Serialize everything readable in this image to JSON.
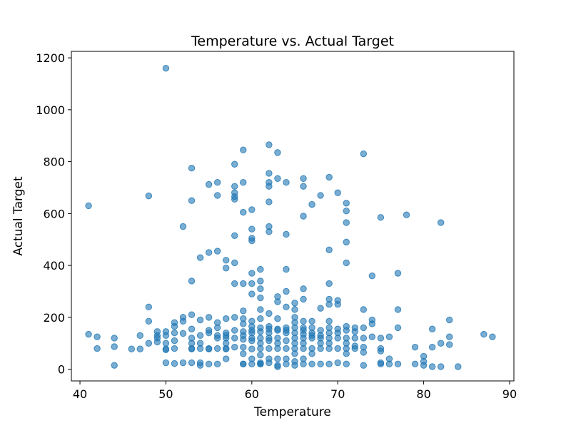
{
  "chart_data": {
    "type": "scatter",
    "title": "Temperature vs. Actual Target",
    "xlabel": "Temperature",
    "ylabel": "Actual Target",
    "xlim": [
      39,
      90.5
    ],
    "ylim": [
      -45,
      1225
    ],
    "xticks": [
      40,
      50,
      60,
      70,
      80,
      90
    ],
    "yticks": [
      0,
      200,
      400,
      600,
      800,
      1000,
      1200
    ],
    "grid": false,
    "legend": "none",
    "color": "#1f77b4",
    "series": [
      {
        "x": [
          41,
          41,
          42,
          42,
          44,
          44,
          44,
          46,
          47,
          47,
          48,
          48,
          48,
          48,
          49,
          49,
          49,
          49,
          50,
          50,
          50,
          50,
          50,
          50,
          50,
          51,
          51,
          51,
          51,
          51,
          51,
          52,
          52,
          52,
          52,
          52,
          53,
          53,
          53,
          53,
          53,
          53,
          53,
          53,
          53,
          53,
          54,
          54,
          54,
          54,
          54,
          54,
          54,
          55,
          55,
          55,
          55,
          55,
          55,
          55,
          55,
          56,
          56,
          56,
          56,
          56,
          56,
          56,
          56,
          56,
          57,
          57,
          57,
          57,
          57,
          57,
          57,
          57,
          57,
          57,
          58,
          58,
          58,
          58,
          58,
          58,
          58,
          58,
          58,
          58,
          58,
          58,
          59,
          59,
          59,
          59,
          59,
          59,
          59,
          59,
          59,
          59,
          59,
          59,
          59,
          59,
          60,
          60,
          60,
          60,
          60,
          60,
          60,
          60,
          60,
          60,
          60,
          60,
          60,
          60,
          60,
          60,
          61,
          61,
          61,
          61,
          61,
          61,
          61,
          61,
          61,
          61,
          61,
          61,
          61,
          61,
          61,
          62,
          62,
          62,
          62,
          62,
          62,
          62,
          62,
          62,
          62,
          62,
          62,
          62,
          62,
          62,
          62,
          63,
          63,
          63,
          63,
          63,
          63,
          63,
          63,
          63,
          63,
          63,
          63,
          63,
          64,
          64,
          64,
          64,
          64,
          64,
          64,
          64,
          64,
          64,
          64,
          64,
          65,
          65,
          65,
          65,
          65,
          65,
          65,
          65,
          65,
          65,
          65,
          65,
          66,
          66,
          66,
          66,
          66,
          66,
          66,
          66,
          66,
          66,
          66,
          66,
          66,
          66,
          67,
          67,
          67,
          67,
          67,
          67,
          67,
          67,
          67,
          68,
          68,
          68,
          68,
          68,
          68,
          68,
          68,
          69,
          69,
          69,
          69,
          69,
          69,
          69,
          69,
          69,
          69,
          69,
          69,
          70,
          70,
          70,
          70,
          70,
          70,
          70,
          70,
          71,
          71,
          71,
          71,
          71,
          71,
          71,
          71,
          71,
          71,
          71,
          71,
          72,
          72,
          72,
          72,
          72,
          73,
          73,
          73,
          73,
          73,
          73,
          73,
          74,
          74,
          74,
          74,
          75,
          75,
          75,
          75,
          75,
          75,
          76,
          76,
          76,
          77,
          77,
          77,
          77,
          78,
          79,
          79,
          80,
          80,
          80,
          81,
          81,
          81,
          82,
          82,
          82,
          83,
          83,
          83,
          84,
          87,
          88
        ],
        "y": [
          630,
          135,
          125,
          80,
          120,
          87,
          15,
          78,
          130,
          78,
          668,
          240,
          185,
          100,
          145,
          130,
          120,
          105,
          1160,
          145,
          130,
          100,
          78,
          75,
          25,
          180,
          165,
          140,
          110,
          80,
          22,
          550,
          200,
          185,
          138,
          25,
          775,
          650,
          340,
          210,
          155,
          120,
          100,
          80,
          78,
          25,
          430,
          190,
          130,
          100,
          80,
          25,
          15,
          712,
          450,
          200,
          150,
          140,
          80,
          78,
          20,
          720,
          670,
          455,
          180,
          160,
          130,
          120,
          80,
          20,
          420,
          390,
          195,
          140,
          130,
          120,
          100,
          80,
          78,
          40,
          790,
          705,
          680,
          665,
          655,
          515,
          410,
          330,
          200,
          150,
          120,
          85,
          845,
          720,
          605,
          330,
          225,
          195,
          175,
          145,
          130,
          115,
          85,
          60,
          20,
          20,
          615,
          540,
          505,
          495,
          370,
          330,
          290,
          185,
          165,
          150,
          140,
          120,
          110,
          78,
          40,
          20,
          385,
          340,
          310,
          275,
          230,
          195,
          160,
          145,
          120,
          100,
          80,
          55,
          25,
          20,
          20,
          865,
          755,
          720,
          705,
          645,
          550,
          530,
          215,
          165,
          155,
          140,
          120,
          110,
          80,
          40,
          25,
          835,
          735,
          280,
          260,
          195,
          155,
          150,
          120,
          100,
          80,
          40,
          15,
          10,
          720,
          520,
          385,
          300,
          240,
          160,
          150,
          140,
          110,
          80,
          40,
          20,
          30,
          255,
          230,
          200,
          180,
          160,
          140,
          120,
          100,
          80,
          60,
          15,
          735,
          705,
          590,
          310,
          270,
          185,
          160,
          150,
          135,
          120,
          100,
          80,
          40,
          20,
          635,
          185,
          160,
          140,
          130,
          120,
          80,
          60,
          20,
          670,
          235,
          150,
          130,
          120,
          100,
          80,
          20,
          740,
          460,
          330,
          270,
          250,
          185,
          160,
          140,
          120,
          100,
          80,
          20,
          680,
          265,
          250,
          155,
          140,
          120,
          80,
          25,
          640,
          610,
          565,
          490,
          410,
          165,
          150,
          120,
          100,
          80,
          60,
          20,
          160,
          145,
          120,
          90,
          80,
          830,
          230,
          160,
          120,
          85,
          65,
          15,
          360,
          190,
          175,
          125,
          585,
          120,
          80,
          70,
          25,
          20,
          125,
          40,
          20,
          370,
          230,
          160,
          20,
          595,
          85,
          20,
          50,
          30,
          15,
          155,
          85,
          10,
          565,
          100,
          10,
          190,
          125,
          95,
          10,
          135,
          125
        ]
      }
    ]
  }
}
